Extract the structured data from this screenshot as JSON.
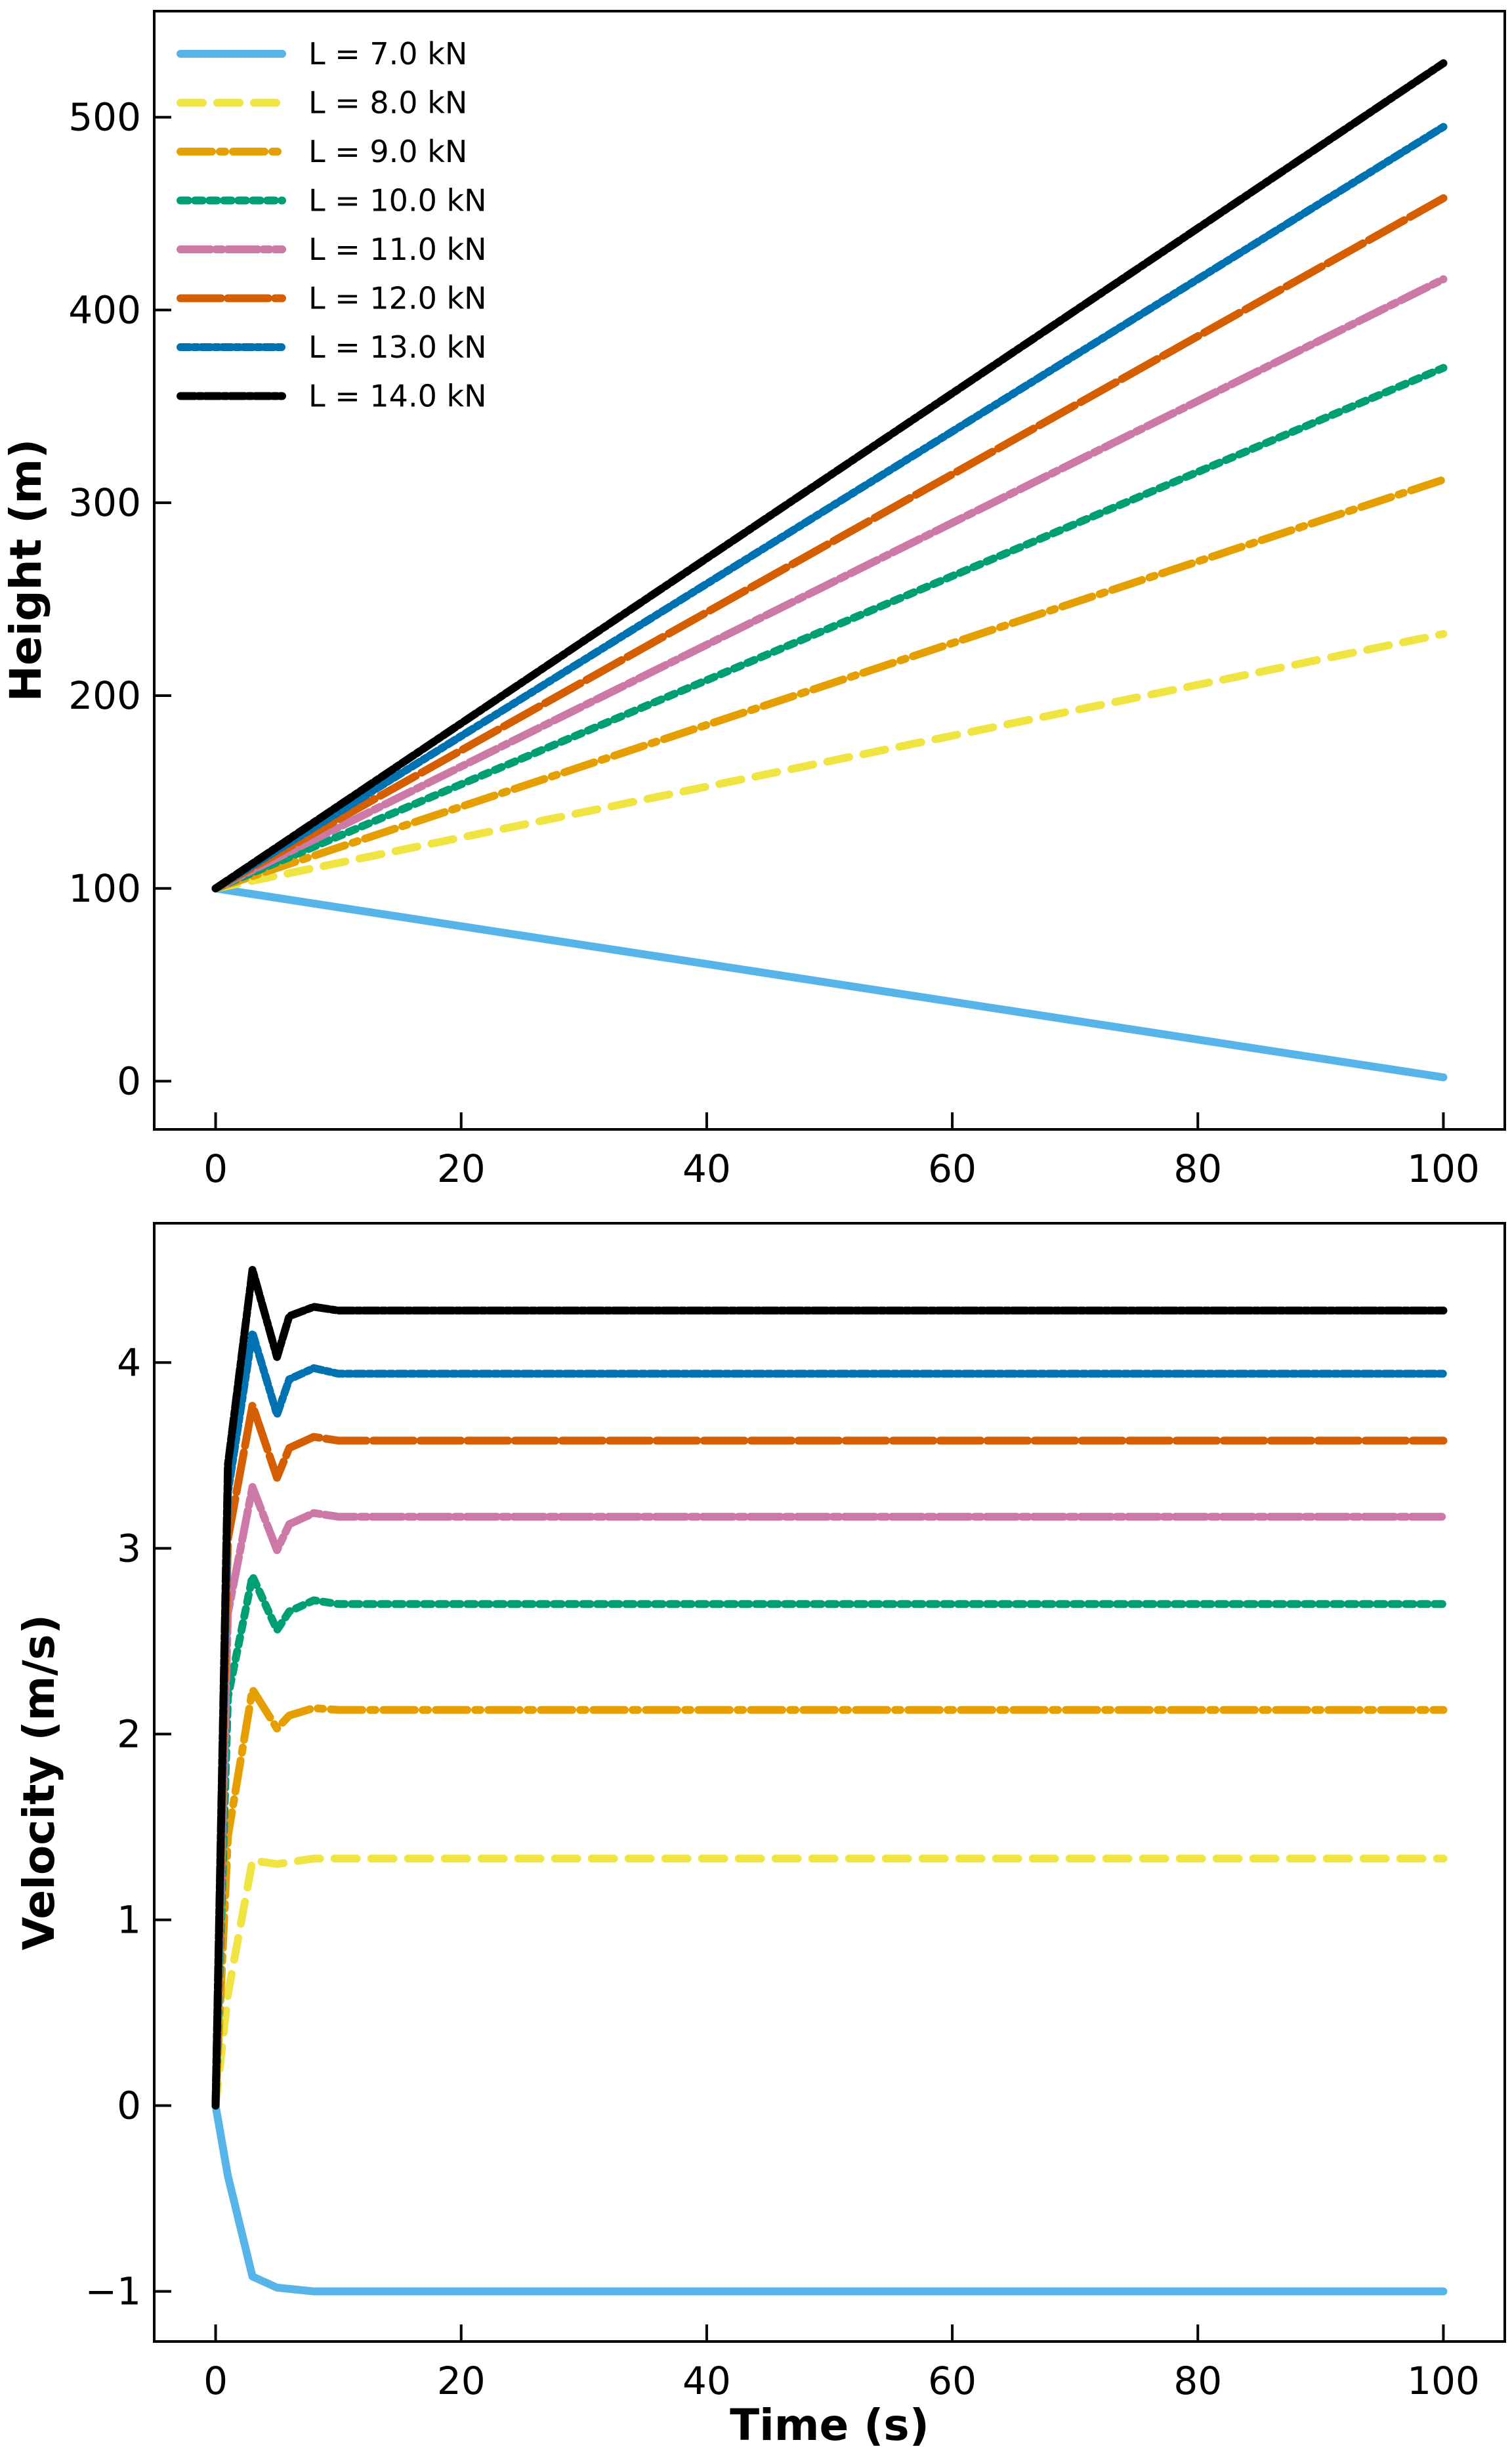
{
  "chart_data": [
    {
      "type": "line",
      "title": "",
      "xlabel": "",
      "ylabel": "Height (m)",
      "xlim": [
        -5,
        105
      ],
      "ylim": [
        -25,
        555
      ],
      "xticks": [
        0,
        20,
        40,
        60,
        80,
        100
      ],
      "yticks": [
        0,
        100,
        200,
        300,
        400,
        500
      ],
      "grid": false,
      "legend": "top-left",
      "series": [
        {
          "name": "L = 7.0 kN",
          "color": "#56B4E9",
          "x": [
            0,
            100
          ],
          "y": [
            100,
            2
          ]
        },
        {
          "name": "L = 8.0 kN",
          "color": "#F0E442",
          "x": [
            0,
            100
          ],
          "y": [
            100,
            232
          ]
        },
        {
          "name": "L = 9.0 kN",
          "color": "#E69F00",
          "x": [
            0,
            100
          ],
          "y": [
            100,
            312
          ]
        },
        {
          "name": "L = 10.0 kN",
          "color": "#009E73",
          "x": [
            0,
            100
          ],
          "y": [
            100,
            370
          ]
        },
        {
          "name": "L = 11.0 kN",
          "color": "#CC79A7",
          "x": [
            0,
            100
          ],
          "y": [
            100,
            416
          ]
        },
        {
          "name": "L = 12.0 kN",
          "color": "#D55E00",
          "x": [
            0,
            100
          ],
          "y": [
            100,
            458
          ]
        },
        {
          "name": "L = 13.0 kN",
          "color": "#0072B2",
          "x": [
            0,
            100
          ],
          "y": [
            100,
            495
          ]
        },
        {
          "name": "L = 14.0 kN",
          "color": "#000000",
          "x": [
            0,
            100
          ],
          "y": [
            100,
            528
          ]
        }
      ]
    },
    {
      "type": "line",
      "title": "",
      "xlabel": "Time (s)",
      "ylabel": "Velocity (m/s)",
      "xlim": [
        -5,
        105
      ],
      "ylim": [
        -1.27,
        4.75
      ],
      "xticks": [
        0,
        20,
        40,
        60,
        80,
        100
      ],
      "yticks": [
        -1,
        0,
        1,
        2,
        3,
        4
      ],
      "grid": false,
      "series": [
        {
          "name": "L = 7.0 kN",
          "color": "#56B4E9",
          "x": [
            0,
            1,
            3,
            5,
            8,
            10,
            100
          ],
          "y": [
            0,
            -0.38,
            -0.92,
            -0.98,
            -1.0,
            -1.0,
            -1.0
          ]
        },
        {
          "name": "L = 8.0 kN",
          "color": "#F0E442",
          "x": [
            0,
            1,
            3,
            5,
            8,
            10,
            100
          ],
          "y": [
            0,
            0.6,
            1.32,
            1.3,
            1.33,
            1.33,
            1.33
          ]
        },
        {
          "name": "L = 9.0 kN",
          "color": "#E69F00",
          "x": [
            0,
            1,
            3,
            5,
            6,
            8,
            10,
            100
          ],
          "y": [
            0,
            1.45,
            2.24,
            2.03,
            2.1,
            2.14,
            2.13,
            2.13
          ]
        },
        {
          "name": "L = 10.0 kN",
          "color": "#009E73",
          "x": [
            0,
            1,
            3,
            5,
            6,
            8,
            10,
            100
          ],
          "y": [
            0,
            2.2,
            2.85,
            2.56,
            2.66,
            2.72,
            2.7,
            2.7
          ]
        },
        {
          "name": "L = 11.0 kN",
          "color": "#CC79A7",
          "x": [
            0,
            1,
            3,
            5,
            6,
            8,
            10,
            100
          ],
          "y": [
            0,
            2.65,
            3.33,
            2.99,
            3.13,
            3.19,
            3.17,
            3.17
          ]
        },
        {
          "name": "L = 12.0 kN",
          "color": "#D55E00",
          "x": [
            0,
            1,
            3,
            5,
            6,
            8,
            10,
            100
          ],
          "y": [
            0,
            3.05,
            3.77,
            3.38,
            3.54,
            3.6,
            3.58,
            3.58
          ]
        },
        {
          "name": "L = 13.0 kN",
          "color": "#0072B2",
          "x": [
            0,
            1,
            3,
            5,
            6,
            8,
            10,
            100
          ],
          "y": [
            0,
            3.3,
            4.16,
            3.72,
            3.91,
            3.97,
            3.94,
            3.94
          ]
        },
        {
          "name": "L = 14.0 kN",
          "color": "#000000",
          "x": [
            0,
            1,
            3,
            5,
            6,
            8,
            10,
            100
          ],
          "y": [
            0,
            3.45,
            4.5,
            4.03,
            4.25,
            4.3,
            4.28,
            4.28
          ]
        }
      ]
    }
  ]
}
